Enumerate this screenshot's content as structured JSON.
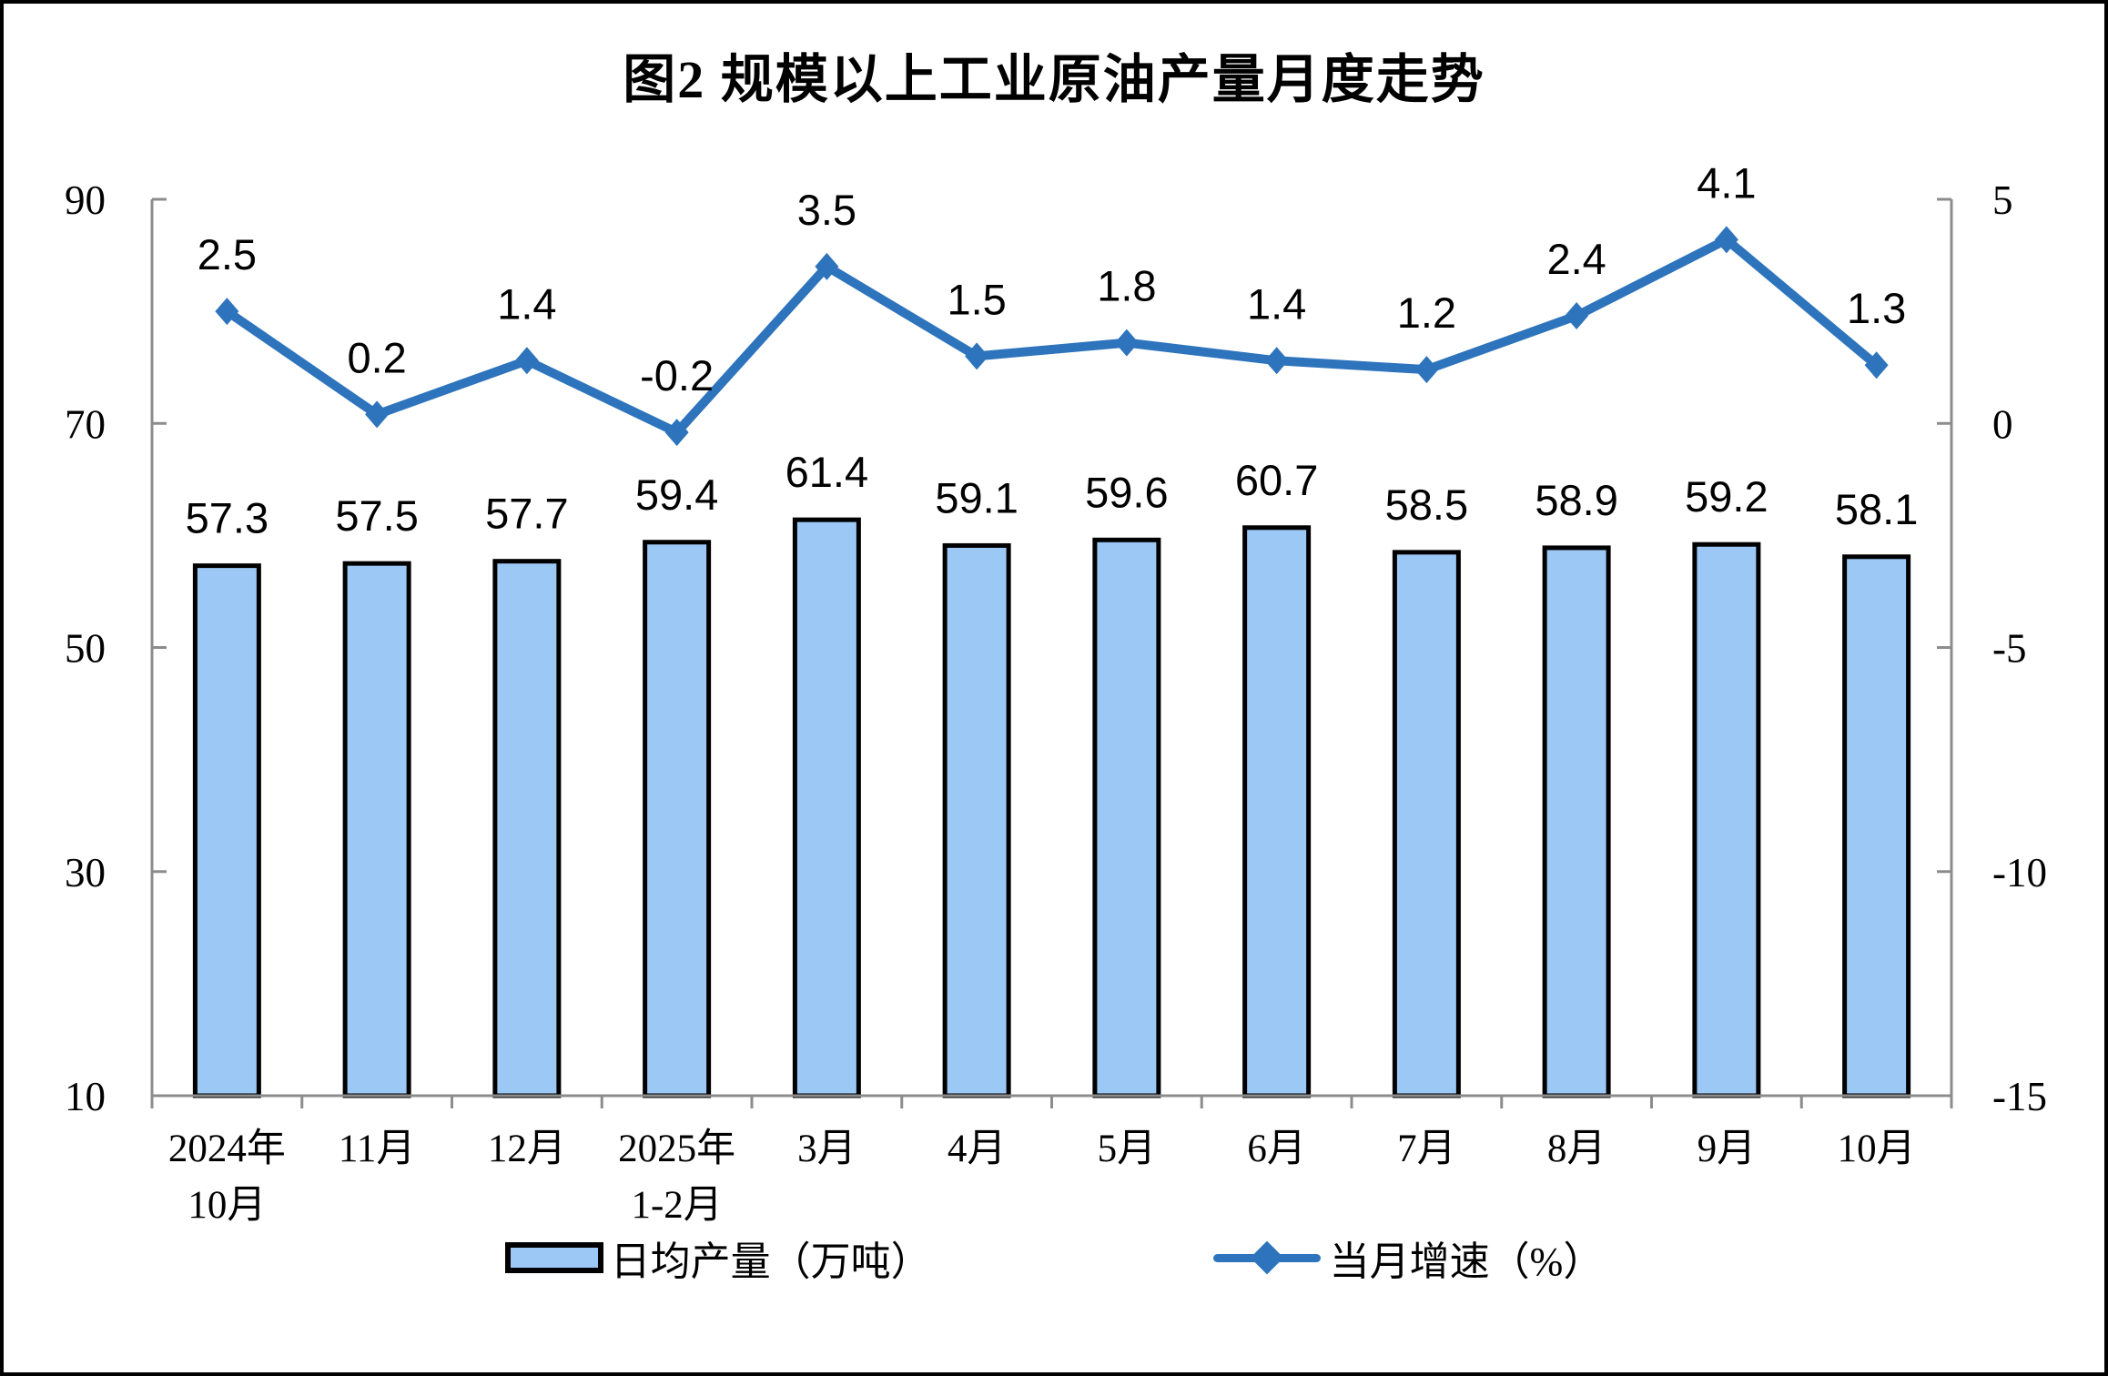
{
  "title": "图2 规模以上工业原油产量月度走势",
  "colors": {
    "background": "#FFFFFF",
    "frame": "#000000",
    "bar_fill": "#9BC8F5",
    "bar_border": "#000000",
    "line": "#2E74BC",
    "axis": "#8C8C8C",
    "text": "#000000"
  },
  "chart_data": {
    "type": "bar",
    "subtype": "combo-bar-line-dual-axis",
    "title": "图2 规模以上工业原油产量月度走势",
    "categories": [
      [
        "2024年",
        "10月"
      ],
      [
        "11月"
      ],
      [
        "12月"
      ],
      [
        "2025年",
        "1-2月"
      ],
      [
        "3月"
      ],
      [
        "4月"
      ],
      [
        "5月"
      ],
      [
        "6月"
      ],
      [
        "7月"
      ],
      [
        "8月"
      ],
      [
        "9月"
      ],
      [
        "10月"
      ]
    ],
    "series": [
      {
        "name": "日均产量（万吨）",
        "type": "bar",
        "axis": "left",
        "values": [
          57.3,
          57.5,
          57.7,
          59.4,
          61.4,
          59.1,
          59.6,
          60.7,
          58.5,
          58.9,
          59.2,
          58.1
        ]
      },
      {
        "name": "当月增速（%）",
        "type": "line",
        "axis": "right",
        "marker": "diamond",
        "values": [
          2.5,
          0.2,
          1.4,
          -0.2,
          3.5,
          1.5,
          1.8,
          1.4,
          1.2,
          2.4,
          4.1,
          1.3
        ]
      }
    ],
    "left_axis": {
      "min": 10,
      "max": 90,
      "ticks": [
        10,
        30,
        50,
        70,
        90
      ],
      "label": ""
    },
    "right_axis": {
      "min": -15,
      "max": 5,
      "ticks": [
        -15,
        -10,
        -5,
        0,
        5
      ],
      "label": ""
    },
    "grid": false,
    "legend_position": "bottom"
  },
  "legend": {
    "items": [
      {
        "label": "日均产量（万吨）",
        "swatch": "bar"
      },
      {
        "label": "当月增速（%）",
        "swatch": "line"
      }
    ]
  }
}
